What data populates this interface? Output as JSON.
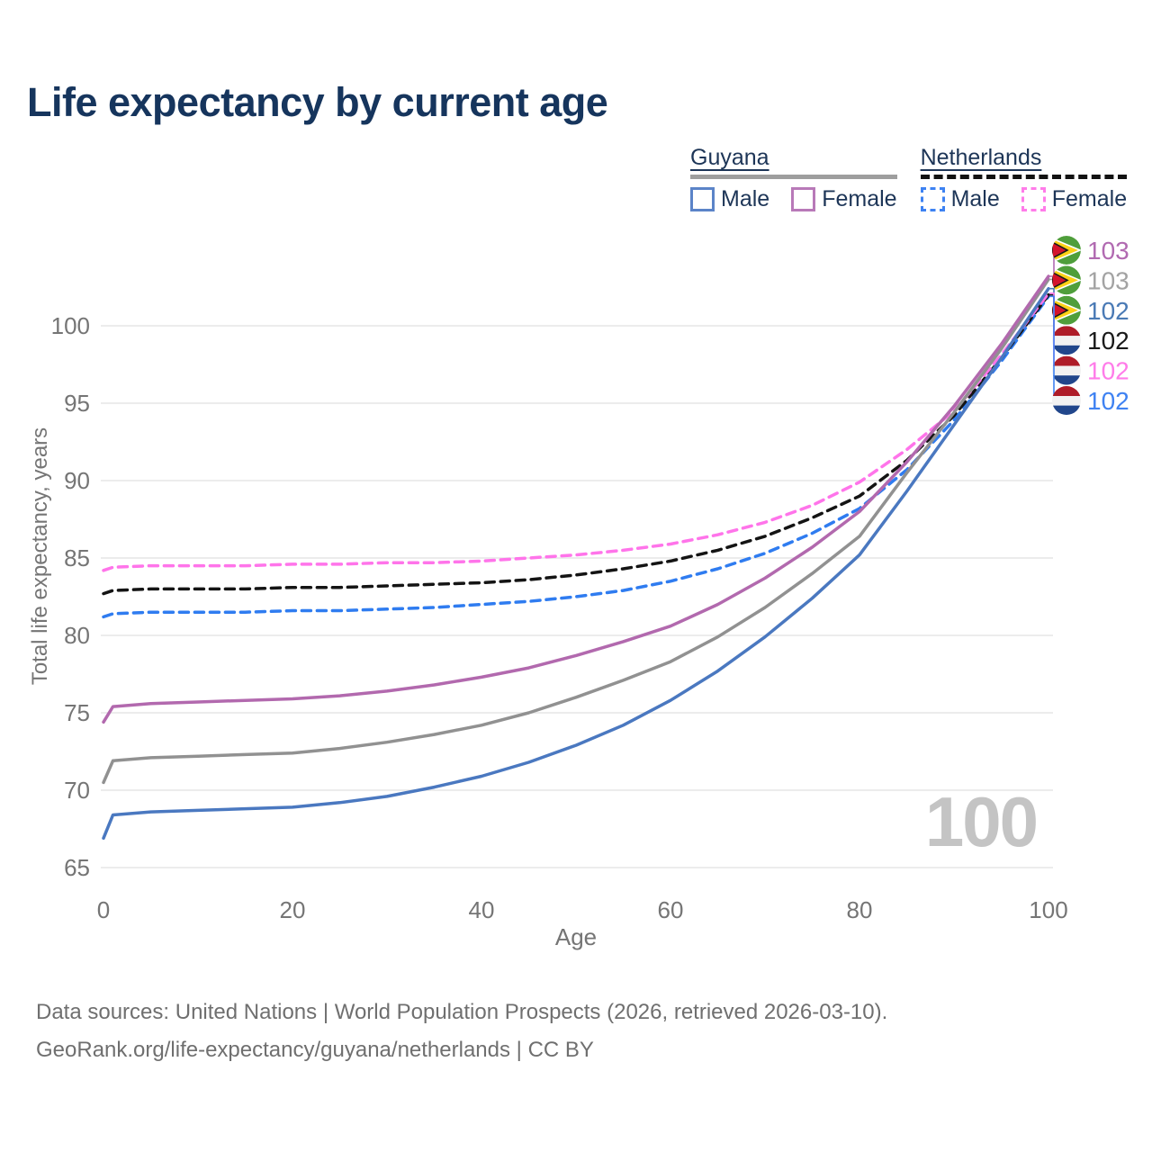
{
  "watermark_age": "100",
  "legend": {
    "groups": [
      {
        "name": "Guyana",
        "line_style": "solid",
        "line_color": "#9e9e9e",
        "items": [
          {
            "label": "Male",
            "color": "#5b84c8"
          },
          {
            "label": "Female",
            "color": "#b879b8"
          }
        ]
      },
      {
        "name": "Netherlands",
        "line_style": "dashed",
        "line_color": "#121212",
        "items": [
          {
            "label": "Male",
            "color": "#3d82f2"
          },
          {
            "label": "Female",
            "color": "#ff7ce9"
          }
        ]
      }
    ]
  },
  "chart_data": {
    "type": "line",
    "title": "Life expectancy by current age",
    "xlabel": "Age",
    "ylabel": "Total life expectancy, years",
    "xlim": [
      0,
      100
    ],
    "ylim": [
      64,
      104
    ],
    "x_ticks": [
      0,
      20,
      40,
      60,
      80,
      100
    ],
    "y_ticks": [
      65,
      70,
      75,
      80,
      85,
      90,
      95,
      100
    ],
    "grid": true,
    "legend_position": "top-right",
    "x": [
      0,
      1,
      5,
      10,
      15,
      20,
      25,
      30,
      35,
      40,
      45,
      50,
      55,
      60,
      65,
      70,
      75,
      80,
      85,
      90,
      95,
      100
    ],
    "series": [
      {
        "key": "nl_male",
        "country": "Netherlands",
        "sex": "Male",
        "color": "#2f7cf0",
        "dash": true,
        "end_label": "102",
        "values": [
          81.2,
          81.4,
          81.5,
          81.5,
          81.5,
          81.6,
          81.6,
          81.7,
          81.8,
          82.0,
          82.2,
          82.5,
          82.9,
          83.5,
          84.3,
          85.3,
          86.6,
          88.2,
          90.7,
          93.9,
          97.7,
          101.9
        ]
      },
      {
        "key": "nl_total",
        "country": "Netherlands",
        "sex": "Both",
        "color": "#141414",
        "dash": true,
        "end_label": "102",
        "values": [
          82.7,
          82.9,
          83.0,
          83.0,
          83.0,
          83.1,
          83.1,
          83.2,
          83.3,
          83.4,
          83.6,
          83.9,
          84.3,
          84.8,
          85.5,
          86.4,
          87.6,
          89.0,
          91.3,
          94.2,
          97.9,
          102.0
        ]
      },
      {
        "key": "nl_female",
        "country": "Netherlands",
        "sex": "Female",
        "color": "#ff74ea",
        "dash": true,
        "end_label": "102",
        "values": [
          84.2,
          84.4,
          84.5,
          84.5,
          84.5,
          84.6,
          84.6,
          84.7,
          84.7,
          84.8,
          85.0,
          85.2,
          85.5,
          85.9,
          86.5,
          87.3,
          88.4,
          89.9,
          92.0,
          94.5,
          98.1,
          102.1
        ]
      },
      {
        "key": "guyana_male",
        "country": "Guyana",
        "sex": "Male",
        "color": "#4a78c0",
        "dash": false,
        "end_label": "102",
        "values": [
          66.9,
          68.4,
          68.6,
          68.7,
          68.8,
          68.9,
          69.2,
          69.6,
          70.2,
          70.9,
          71.8,
          72.9,
          74.2,
          75.8,
          77.7,
          79.9,
          82.4,
          85.2,
          89.3,
          93.6,
          97.9,
          102.4
        ]
      },
      {
        "key": "guyana_total",
        "country": "Guyana",
        "sex": "Both",
        "color": "#919191",
        "dash": false,
        "end_label": "103",
        "values": [
          70.5,
          71.9,
          72.1,
          72.2,
          72.3,
          72.4,
          72.7,
          73.1,
          73.6,
          74.2,
          75.0,
          76.0,
          77.1,
          78.3,
          79.9,
          81.8,
          84.0,
          86.4,
          90.5,
          94.4,
          98.5,
          103.0
        ]
      },
      {
        "key": "guyana_female",
        "country": "Guyana",
        "sex": "Female",
        "color": "#b269ae",
        "dash": false,
        "end_label": "103",
        "values": [
          74.4,
          75.4,
          75.6,
          75.7,
          75.8,
          75.9,
          76.1,
          76.4,
          76.8,
          77.3,
          77.9,
          78.7,
          79.6,
          80.6,
          82.0,
          83.7,
          85.7,
          88.0,
          91.2,
          94.8,
          98.8,
          103.2
        ]
      }
    ],
    "end_labels": [
      {
        "series": "guyana_female",
        "flag": "guyana",
        "value": "103",
        "color": "#b16ab1"
      },
      {
        "series": "guyana_total",
        "flag": "guyana",
        "value": "103",
        "color": "#a3a3a3"
      },
      {
        "series": "guyana_male",
        "flag": "guyana",
        "value": "102",
        "color": "#4a7ab5"
      },
      {
        "series": "nl_total",
        "flag": "netherlands",
        "value": "102",
        "color": "#1a1a1a"
      },
      {
        "series": "nl_female",
        "flag": "netherlands",
        "value": "102",
        "color": "#ff7ce9"
      },
      {
        "series": "nl_male",
        "flag": "netherlands",
        "value": "102",
        "color": "#3f82f2"
      }
    ]
  },
  "footer": {
    "line1": "Data sources: United Nations | World Population Prospects (2026, retrieved 2026-03-10).",
    "line2": "GeoRank.org/life-expectancy/guyana/netherlands | CC BY"
  }
}
